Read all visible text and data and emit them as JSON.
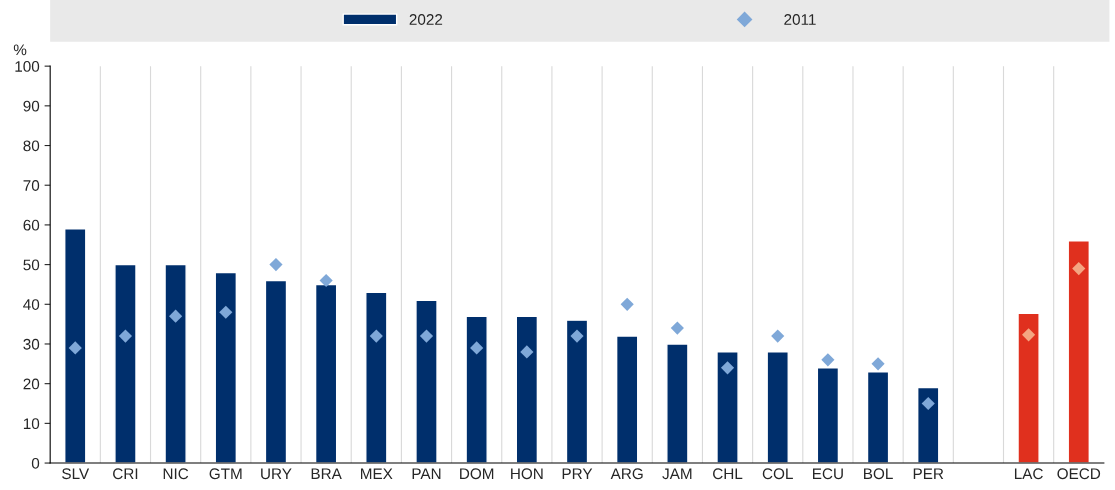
{
  "chart_data": {
    "type": "bar",
    "ylabel": "%",
    "categories": [
      "SLV",
      "CRI",
      "NIC",
      "GTM",
      "URY",
      "BRA",
      "MEX",
      "PAN",
      "DOM",
      "HON",
      "PRY",
      "ARG",
      "JAM",
      "CHL",
      "COL",
      "ECU",
      "BOL",
      "PER",
      null,
      "LAC",
      "OECD"
    ],
    "series": [
      {
        "name": "2022",
        "color": "#002f6c",
        "colors": [
          "#002f6c",
          "#002f6c",
          "#002f6c",
          "#002f6c",
          "#002f6c",
          "#002f6c",
          "#002f6c",
          "#002f6c",
          "#002f6c",
          "#002f6c",
          "#002f6c",
          "#002f6c",
          "#002f6c",
          "#002f6c",
          "#002f6c",
          "#002f6c",
          "#002f6c",
          "#002f6c",
          "#002f6c",
          "#e0301e",
          "#e0301e"
        ],
        "values": [
          59,
          50,
          50,
          48,
          46,
          45,
          43,
          41,
          37,
          37,
          36,
          32,
          30,
          28,
          28,
          24,
          23,
          19,
          null,
          37.7,
          56
        ]
      },
      {
        "name": "2011",
        "type": "scatter",
        "marker": "diamond",
        "color": "#7fa8d8",
        "colors": [
          "#7fa8d8",
          "#7fa8d8",
          "#7fa8d8",
          "#7fa8d8",
          "#7fa8d8",
          "#7fa8d8",
          "#7fa8d8",
          "#7fa8d8",
          "#7fa8d8",
          "#7fa8d8",
          "#7fa8d8",
          "#7fa8d8",
          "#7fa8d8",
          "#7fa8d8",
          "#7fa8d8",
          "#7fa8d8",
          "#7fa8d8",
          "#7fa8d8",
          "#7fa8d8",
          "#f4a582",
          "#f4a582"
        ],
        "values": [
          29,
          32,
          37,
          38,
          50,
          46,
          32,
          32,
          29,
          28,
          32,
          40,
          34,
          24,
          32,
          26,
          25,
          15,
          null,
          32.3,
          49
        ]
      }
    ],
    "ylim": [
      0,
      100
    ],
    "yticks": [
      0,
      10,
      20,
      30,
      40,
      50,
      60,
      70,
      80,
      90,
      100
    ],
    "grid": "x",
    "legend": "top"
  }
}
